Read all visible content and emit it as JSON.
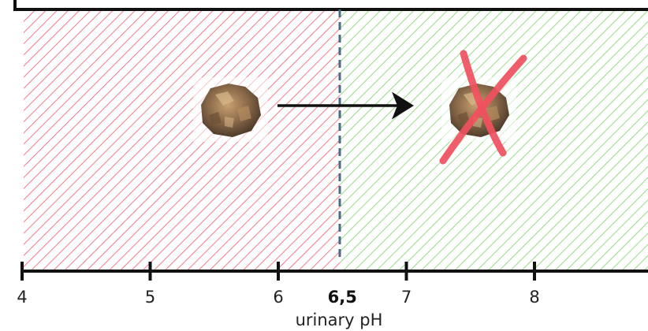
{
  "axis": {
    "title": "urinary pH",
    "min": 4,
    "max": 8.9,
    "ticks": [
      {
        "value": 4,
        "label": "4"
      },
      {
        "value": 5,
        "label": "5"
      },
      {
        "value": 6,
        "label": "6"
      },
      {
        "value": 7,
        "label": "7"
      },
      {
        "value": 8,
        "label": "8"
      }
    ],
    "threshold": {
      "value": 6.5,
      "label": "6,5"
    }
  },
  "regions": {
    "acidic_color": "#e85c6a",
    "alkaline_color": "#7fd16a"
  },
  "colors": {
    "threshold_line": "#4a6a85",
    "axis": "#111111",
    "arrow": "#111111",
    "cross": "#f0505e"
  },
  "icons": {
    "stone_left": "kidney-stone-icon",
    "stone_right": "dissolved-kidney-stone-icon",
    "arrow": "arrow-right-icon",
    "cross": "red-x-icon"
  }
}
